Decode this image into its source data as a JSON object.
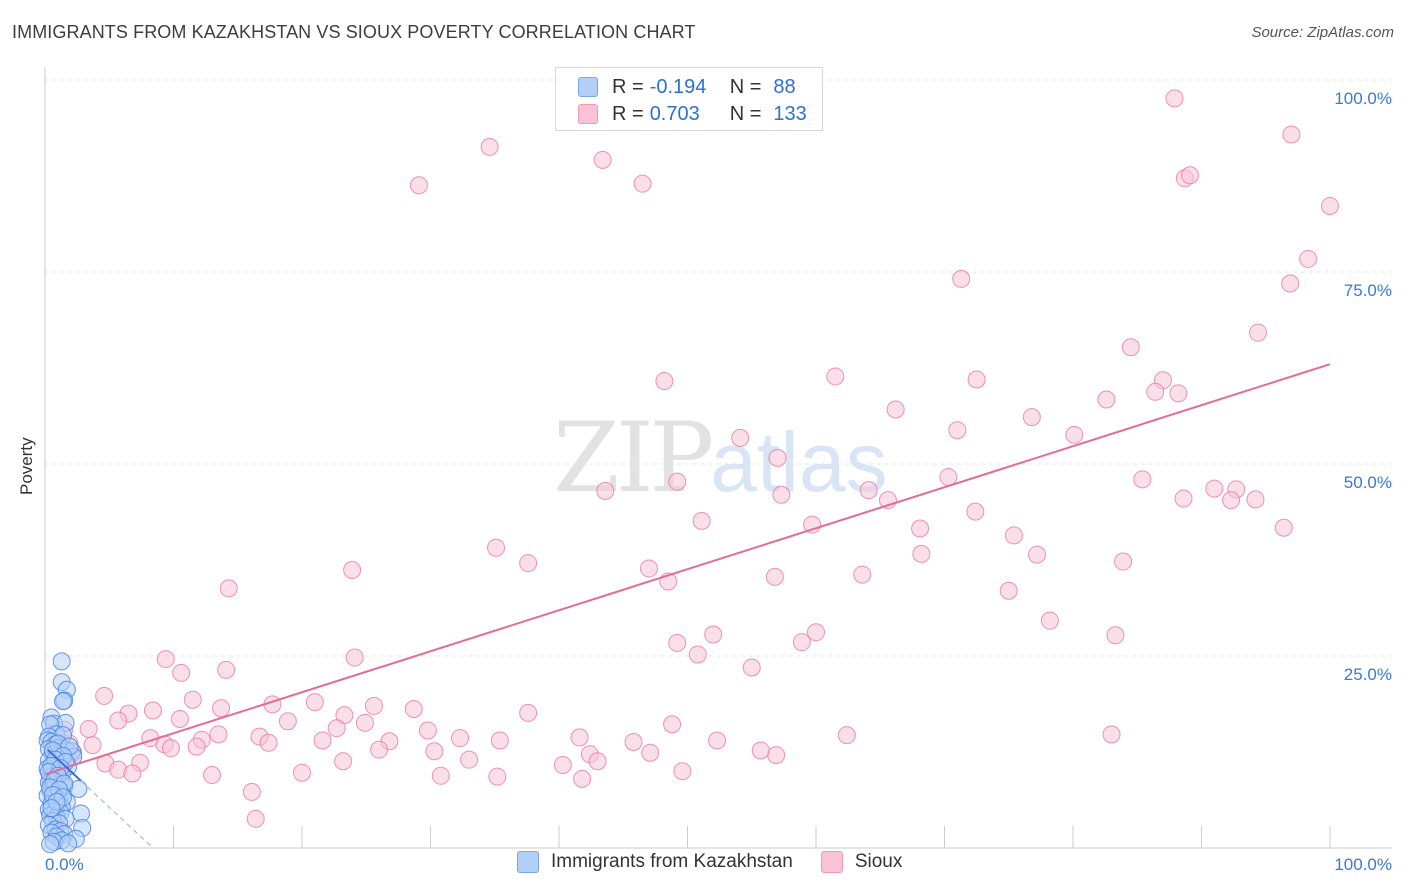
{
  "title": "IMMIGRANTS FROM KAZAKHSTAN VS SIOUX POVERTY CORRELATION CHART",
  "source": "Source: ZipAtlas.com",
  "watermark": {
    "left": "ZIP",
    "right": "atlas"
  },
  "legend": {
    "rows": [
      {
        "r_label": "R =",
        "r_value": "-0.194",
        "n_label": "N =",
        "n_value": "88"
      },
      {
        "r_label": "R =",
        "r_value": "0.703",
        "n_label": "N =",
        "n_value": "133"
      }
    ]
  },
  "colors": {
    "blue_fill": "#b3cff5",
    "blue_stroke": "#4a86e8",
    "blue_line": "#3a6fd8",
    "pink_fill": "#f8c4d5",
    "pink_stroke": "#e8799f",
    "pink_line": "#e56a97",
    "axis_label": "#3b78d8",
    "grid": "#e3e3e3"
  },
  "chart_data": {
    "type": "scatter",
    "title": "IMMIGRANTS FROM KAZAKHSTAN VS SIOUX POVERTY CORRELATION CHART",
    "xlabel": "",
    "ylabel": "Poverty",
    "xlim": [
      0,
      100
    ],
    "ylim": [
      0,
      100
    ],
    "x_tick_labels": [
      "0.0%",
      "100.0%"
    ],
    "y_ticks": [
      25,
      50,
      75,
      100
    ],
    "y_tick_labels": [
      "25.0%",
      "50.0%",
      "75.0%",
      "100.0%"
    ],
    "grid": true,
    "legend_position": "bottom-center",
    "series": [
      {
        "name": "Immigrants from Kazakhstan",
        "color": "blue",
        "trend": {
          "x": [
            0.2,
            8.4
          ],
          "y": [
            12.8,
            0.0
          ],
          "solid_until_x": 2.8
        },
        "points": [
          [
            1.3,
            24.3
          ],
          [
            1.3,
            21.6
          ],
          [
            1.7,
            20.6
          ],
          [
            1.5,
            19.2
          ],
          [
            1.4,
            19.1
          ],
          [
            0.5,
            17.0
          ],
          [
            0.7,
            16.2
          ],
          [
            1.6,
            16.3
          ],
          [
            0.4,
            16.1
          ],
          [
            0.9,
            14.8
          ],
          [
            0.3,
            14.5
          ],
          [
            1.4,
            14.7
          ],
          [
            0.2,
            14.0
          ],
          [
            0.5,
            13.8
          ],
          [
            0.8,
            13.5
          ],
          [
            1.0,
            13.0
          ],
          [
            0.3,
            12.9
          ],
          [
            1.2,
            12.5
          ],
          [
            1.6,
            12.8
          ],
          [
            2.1,
            12.6
          ],
          [
            0.6,
            12.2
          ],
          [
            0.9,
            11.9
          ],
          [
            1.4,
            11.7
          ],
          [
            2.2,
            11.9
          ],
          [
            0.3,
            11.4
          ],
          [
            0.7,
            11.0
          ],
          [
            1.1,
            10.8
          ],
          [
            1.8,
            10.6
          ],
          [
            0.2,
            10.3
          ],
          [
            0.5,
            10.1
          ],
          [
            0.9,
            9.8
          ],
          [
            1.3,
            9.6
          ],
          [
            0.4,
            9.2
          ],
          [
            0.8,
            9.0
          ],
          [
            1.2,
            8.8
          ],
          [
            0.3,
            8.5
          ],
          [
            0.6,
            8.2
          ],
          [
            1.5,
            8.0
          ],
          [
            2.6,
            7.7
          ],
          [
            0.4,
            7.5
          ],
          [
            0.9,
            7.2
          ],
          [
            1.3,
            7.0
          ],
          [
            0.2,
            6.8
          ],
          [
            0.7,
            6.5
          ],
          [
            1.1,
            6.2
          ],
          [
            1.7,
            6.0
          ],
          [
            0.5,
            5.8
          ],
          [
            0.9,
            5.5
          ],
          [
            1.3,
            5.3
          ],
          [
            0.3,
            5.0
          ],
          [
            0.8,
            4.8
          ],
          [
            1.2,
            4.6
          ],
          [
            2.8,
            4.5
          ],
          [
            0.4,
            4.2
          ],
          [
            0.9,
            4.0
          ],
          [
            1.6,
            3.8
          ],
          [
            0.6,
            3.5
          ],
          [
            1.1,
            3.2
          ],
          [
            0.3,
            3.0
          ],
          [
            2.9,
            2.6
          ],
          [
            0.8,
            2.4
          ],
          [
            1.2,
            2.2
          ],
          [
            0.5,
            2.0
          ],
          [
            1.5,
            1.8
          ],
          [
            0.9,
            1.5
          ],
          [
            2.4,
            1.2
          ],
          [
            1.3,
            1.0
          ],
          [
            0.7,
            0.8
          ],
          [
            1.8,
            0.6
          ],
          [
            0.4,
            0.5
          ],
          [
            1.0,
            13.6
          ],
          [
            1.9,
            13.2
          ],
          [
            0.6,
            12.7
          ],
          [
            1.4,
            12.0
          ],
          [
            0.8,
            11.5
          ],
          [
            1.6,
            11.2
          ],
          [
            0.5,
            10.7
          ],
          [
            1.2,
            10.4
          ],
          [
            0.3,
            9.9
          ],
          [
            1.0,
            9.4
          ],
          [
            0.7,
            8.7
          ],
          [
            1.5,
            8.4
          ],
          [
            0.4,
            7.9
          ],
          [
            1.1,
            7.6
          ],
          [
            0.6,
            6.9
          ],
          [
            1.4,
            6.6
          ],
          [
            0.9,
            6.0
          ],
          [
            0.5,
            5.2
          ]
        ]
      },
      {
        "name": "Sioux",
        "color": "pink",
        "trend": {
          "x": [
            0.0,
            100.0
          ],
          "y": [
            9.6,
            63.0
          ]
        },
        "points": [
          [
            87.9,
            97.6
          ],
          [
            97.0,
            92.9
          ],
          [
            34.6,
            91.3
          ],
          [
            43.4,
            89.6
          ],
          [
            46.5,
            86.5
          ],
          [
            29.1,
            86.3
          ],
          [
            88.7,
            87.2
          ],
          [
            89.1,
            87.6
          ],
          [
            100.0,
            83.6
          ],
          [
            98.3,
            76.7
          ],
          [
            71.3,
            74.1
          ],
          [
            96.9,
            73.5
          ],
          [
            94.4,
            67.1
          ],
          [
            84.5,
            65.2
          ],
          [
            61.5,
            61.4
          ],
          [
            48.2,
            60.8
          ],
          [
            72.5,
            61.0
          ],
          [
            87.0,
            60.9
          ],
          [
            86.4,
            59.4
          ],
          [
            82.6,
            58.4
          ],
          [
            88.2,
            59.2
          ],
          [
            66.2,
            57.1
          ],
          [
            76.8,
            56.1
          ],
          [
            71.0,
            54.4
          ],
          [
            80.1,
            53.8
          ],
          [
            54.1,
            53.4
          ],
          [
            57.0,
            50.8
          ],
          [
            70.3,
            48.3
          ],
          [
            85.4,
            48.0
          ],
          [
            49.2,
            47.7
          ],
          [
            43.6,
            46.5
          ],
          [
            64.1,
            46.6
          ],
          [
            65.6,
            45.3
          ],
          [
            91.0,
            46.8
          ],
          [
            92.7,
            46.7
          ],
          [
            88.6,
            45.5
          ],
          [
            92.3,
            45.3
          ],
          [
            94.2,
            45.4
          ],
          [
            72.4,
            43.8
          ],
          [
            51.1,
            42.6
          ],
          [
            59.7,
            42.1
          ],
          [
            68.1,
            41.6
          ],
          [
            96.4,
            41.7
          ],
          [
            75.4,
            40.7
          ],
          [
            35.1,
            39.1
          ],
          [
            68.2,
            38.3
          ],
          [
            77.2,
            38.2
          ],
          [
            83.9,
            37.3
          ],
          [
            37.6,
            37.1
          ],
          [
            47.0,
            36.4
          ],
          [
            23.9,
            36.2
          ],
          [
            48.5,
            34.7
          ],
          [
            56.8,
            35.3
          ],
          [
            14.3,
            33.8
          ],
          [
            75.0,
            33.5
          ],
          [
            78.2,
            29.6
          ],
          [
            52.0,
            27.8
          ],
          [
            60.0,
            28.1
          ],
          [
            49.2,
            26.7
          ],
          [
            9.4,
            24.6
          ],
          [
            24.1,
            24.8
          ],
          [
            50.8,
            25.2
          ],
          [
            83.3,
            27.7
          ],
          [
            55.0,
            23.5
          ],
          [
            14.1,
            23.2
          ],
          [
            10.6,
            22.8
          ],
          [
            4.6,
            19.8
          ],
          [
            11.5,
            19.3
          ],
          [
            17.7,
            18.7
          ],
          [
            21.0,
            19.0
          ],
          [
            25.6,
            18.5
          ],
          [
            8.4,
            17.9
          ],
          [
            13.7,
            18.2
          ],
          [
            24.9,
            16.3
          ],
          [
            6.5,
            17.5
          ],
          [
            23.3,
            17.3
          ],
          [
            10.5,
            16.8
          ],
          [
            18.9,
            16.5
          ],
          [
            5.7,
            16.6
          ],
          [
            13.5,
            14.8
          ],
          [
            12.2,
            14.1
          ],
          [
            22.7,
            15.6
          ],
          [
            29.8,
            15.3
          ],
          [
            16.7,
            14.5
          ],
          [
            32.3,
            14.3
          ],
          [
            37.6,
            17.6
          ],
          [
            26.8,
            13.9
          ],
          [
            21.6,
            14.0
          ],
          [
            35.4,
            14.0
          ],
          [
            8.2,
            14.3
          ],
          [
            1.9,
            13.6
          ],
          [
            3.7,
            13.4
          ],
          [
            9.3,
            13.5
          ],
          [
            9.8,
            13.0
          ],
          [
            11.8,
            13.2
          ],
          [
            26.0,
            12.8
          ],
          [
            30.3,
            12.6
          ],
          [
            45.8,
            13.8
          ],
          [
            41.6,
            14.4
          ],
          [
            52.3,
            14.0
          ],
          [
            42.4,
            12.2
          ],
          [
            47.1,
            12.4
          ],
          [
            56.9,
            12.1
          ],
          [
            23.2,
            11.3
          ],
          [
            1.8,
            11.7
          ],
          [
            4.7,
            11.0
          ],
          [
            40.3,
            10.8
          ],
          [
            33.0,
            11.5
          ],
          [
            43.0,
            11.3
          ],
          [
            17.4,
            13.7
          ],
          [
            7.4,
            11.1
          ],
          [
            5.7,
            10.2
          ],
          [
            13.0,
            9.5
          ],
          [
            20.0,
            9.8
          ],
          [
            30.8,
            9.4
          ],
          [
            35.2,
            9.3
          ],
          [
            41.8,
            9.0
          ],
          [
            49.6,
            10.0
          ],
          [
            1.5,
            15.4
          ],
          [
            0.8,
            14.9
          ],
          [
            3.4,
            15.5
          ],
          [
            2.2,
            12.4
          ],
          [
            6.8,
            9.7
          ],
          [
            16.1,
            7.3
          ],
          [
            16.4,
            3.8
          ],
          [
            48.8,
            16.1
          ],
          [
            83.0,
            14.8
          ],
          [
            62.4,
            14.7
          ],
          [
            55.7,
            12.7
          ],
          [
            58.9,
            26.8
          ],
          [
            63.6,
            35.6
          ],
          [
            57.3,
            46.0
          ],
          [
            28.7,
            18.1
          ]
        ]
      }
    ]
  },
  "bottom_legend": {
    "items": [
      "Immigrants from Kazakhstan",
      "Sioux"
    ]
  }
}
